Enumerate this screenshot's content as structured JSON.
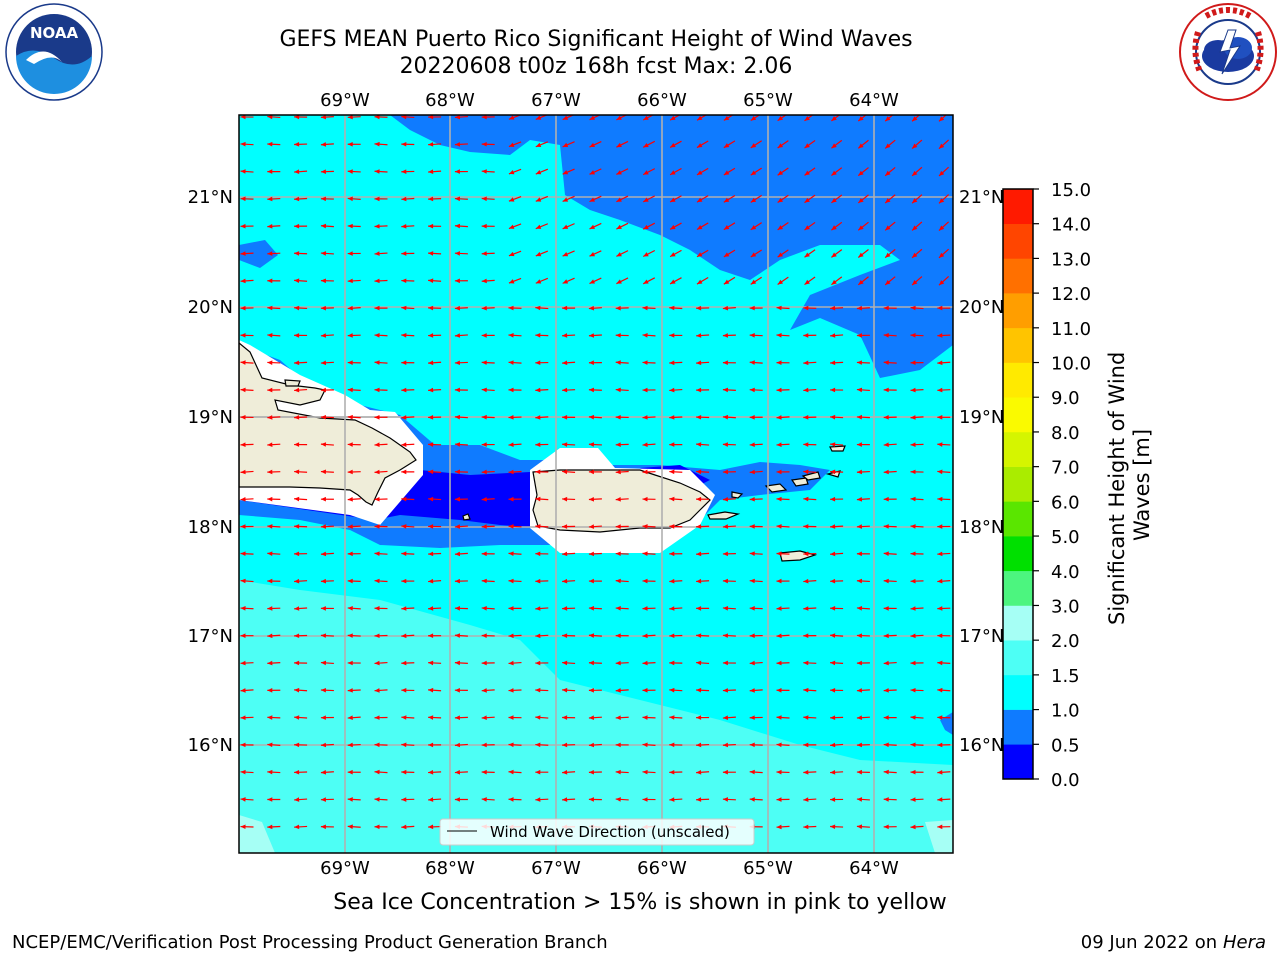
{
  "title_line1": "GEFS MEAN Puerto Rico Significant Height of Wind Waves",
  "title_line2": "20220608 t00z 168h fcst   Max: 2.06",
  "map": {
    "lon_labels": [
      "69°W",
      "68°W",
      "67°W",
      "66°W",
      "65°W",
      "64°W"
    ],
    "lat_labels": [
      "21°N",
      "20°N",
      "19°N",
      "18°N",
      "17°N",
      "16°N"
    ],
    "legend_label": "Wind Wave Direction (unscaled)",
    "colors": {
      "land": "#efedd9",
      "coast": "#000000",
      "grid": "#b0b0b0",
      "arrow": "#ff0000",
      "band_0_05": "#0000ff",
      "band_05_10": "#0f7bff",
      "band_10_15": "#00ffff",
      "band_15_20": "#4dfff5",
      "band_20_30": "#a6fff5"
    }
  },
  "colorbar": {
    "label": "Significant Height of Wind Waves [m]",
    "ticks": [
      "0.0",
      "0.5",
      "1.0",
      "1.5",
      "2.0",
      "3.0",
      "4.0",
      "5.0",
      "6.0",
      "7.0",
      "8.0",
      "9.0",
      "10.0",
      "11.0",
      "12.0",
      "13.0",
      "14.0",
      "15.0"
    ],
    "colors": [
      "#0000ff",
      "#0f7bff",
      "#00ffff",
      "#4dfff5",
      "#a6fff5",
      "#4cf57f",
      "#00e000",
      "#5ae600",
      "#aaec00",
      "#d5f500",
      "#fafa00",
      "#ffea00",
      "#ffc400",
      "#ff9e00",
      "#ff7000",
      "#ff4500",
      "#ff1a00"
    ]
  },
  "footer_note": "Sea Ice Concentration > 15% is shown in pink to yellow",
  "credit": "NCEP/EMC/Verification Post Processing Product Generation Branch",
  "date": "09 Jun 2022 on",
  "date_host": "Hera",
  "logos": {
    "noaa_text": "NOAA",
    "noaa_ring": "NATIONAL OCEANIC AND ATMOSPHERIC ADMINISTRATION",
    "nws_text": "NATIONAL WEATHER SERVICE"
  }
}
